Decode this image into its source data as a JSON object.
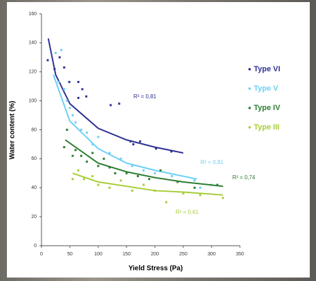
{
  "chart_data": {
    "type": "scatter",
    "xlabel": "Yield Stress (Pa)",
    "ylabel": "Water content (%)",
    "xlim": [
      0,
      350
    ],
    "ylim": [
      0,
      160
    ],
    "xticks": [
      0,
      50,
      100,
      150,
      200,
      250,
      300,
      350
    ],
    "yticks": [
      0,
      20,
      40,
      60,
      80,
      100,
      120,
      140,
      160
    ],
    "grid": false,
    "legend": "right",
    "series": [
      {
        "name": "Type VI",
        "color": "#2e3192",
        "x": [
          11,
          23,
          32,
          40,
          49,
          65,
          72,
          65,
          79,
          122,
          137,
          157,
          162,
          174,
          202,
          229
        ],
        "values": [
          128,
          122,
          130,
          123,
          113,
          113,
          108,
          102,
          103,
          97,
          98,
          72,
          70,
          72,
          67,
          65
        ],
        "trend": {
          "x": [
            12,
            25,
            50,
            100,
            150,
            200,
            250
          ],
          "values": [
            143,
            118,
            98,
            81,
            73,
            68,
            64
          ]
        },
        "r2": "R² = 0,81"
      },
      {
        "name": "Type V",
        "color": "#6ccff6",
        "x": [
          25,
          30,
          35,
          40,
          45,
          50,
          55,
          60,
          70,
          80,
          90,
          100,
          120,
          140,
          160,
          180,
          200,
          230,
          270,
          280,
          300
        ],
        "values": [
          133,
          113,
          135,
          108,
          100,
          95,
          90,
          85,
          80,
          78,
          70,
          75,
          64,
          60,
          55,
          52,
          50,
          48,
          45,
          40,
          42
        ],
        "trend": {
          "x": [
            21,
            50,
            100,
            150,
            200,
            274
          ],
          "values": [
            118,
            86,
            67,
            57,
            52,
            46
          ]
        },
        "r2": "R² = 0,81"
      },
      {
        "name": "Type IV",
        "color": "#2e7d32",
        "x": [
          40,
          45,
          55,
          60,
          70,
          80,
          90,
          100,
          110,
          120,
          130,
          150,
          170,
          190,
          210,
          240,
          270,
          310
        ],
        "values": [
          68,
          80,
          62,
          66,
          62,
          58,
          64,
          55,
          60,
          54,
          50,
          50,
          48,
          46,
          52,
          44,
          40,
          42
        ],
        "trend": {
          "x": [
            42,
            100,
            150,
            200,
            250,
            320
          ],
          "values": [
            73,
            57,
            51,
            47,
            44,
            41
          ]
        },
        "r2": "R² = 0,74"
      },
      {
        "name": "Type III",
        "color": "#a6ce39",
        "x": [
          55,
          65,
          75,
          90,
          100,
          120,
          140,
          160,
          180,
          200,
          220,
          250,
          280,
          320
        ],
        "values": [
          46,
          52,
          46,
          48,
          42,
          40,
          45,
          38,
          42,
          38,
          30,
          36,
          35,
          33
        ],
        "trend": {
          "x": [
            55,
            100,
            150,
            200,
            250,
            320
          ],
          "values": [
            50,
            44,
            41,
            38,
            37,
            35
          ]
        },
        "r2": "R² = 0,61"
      }
    ]
  }
}
